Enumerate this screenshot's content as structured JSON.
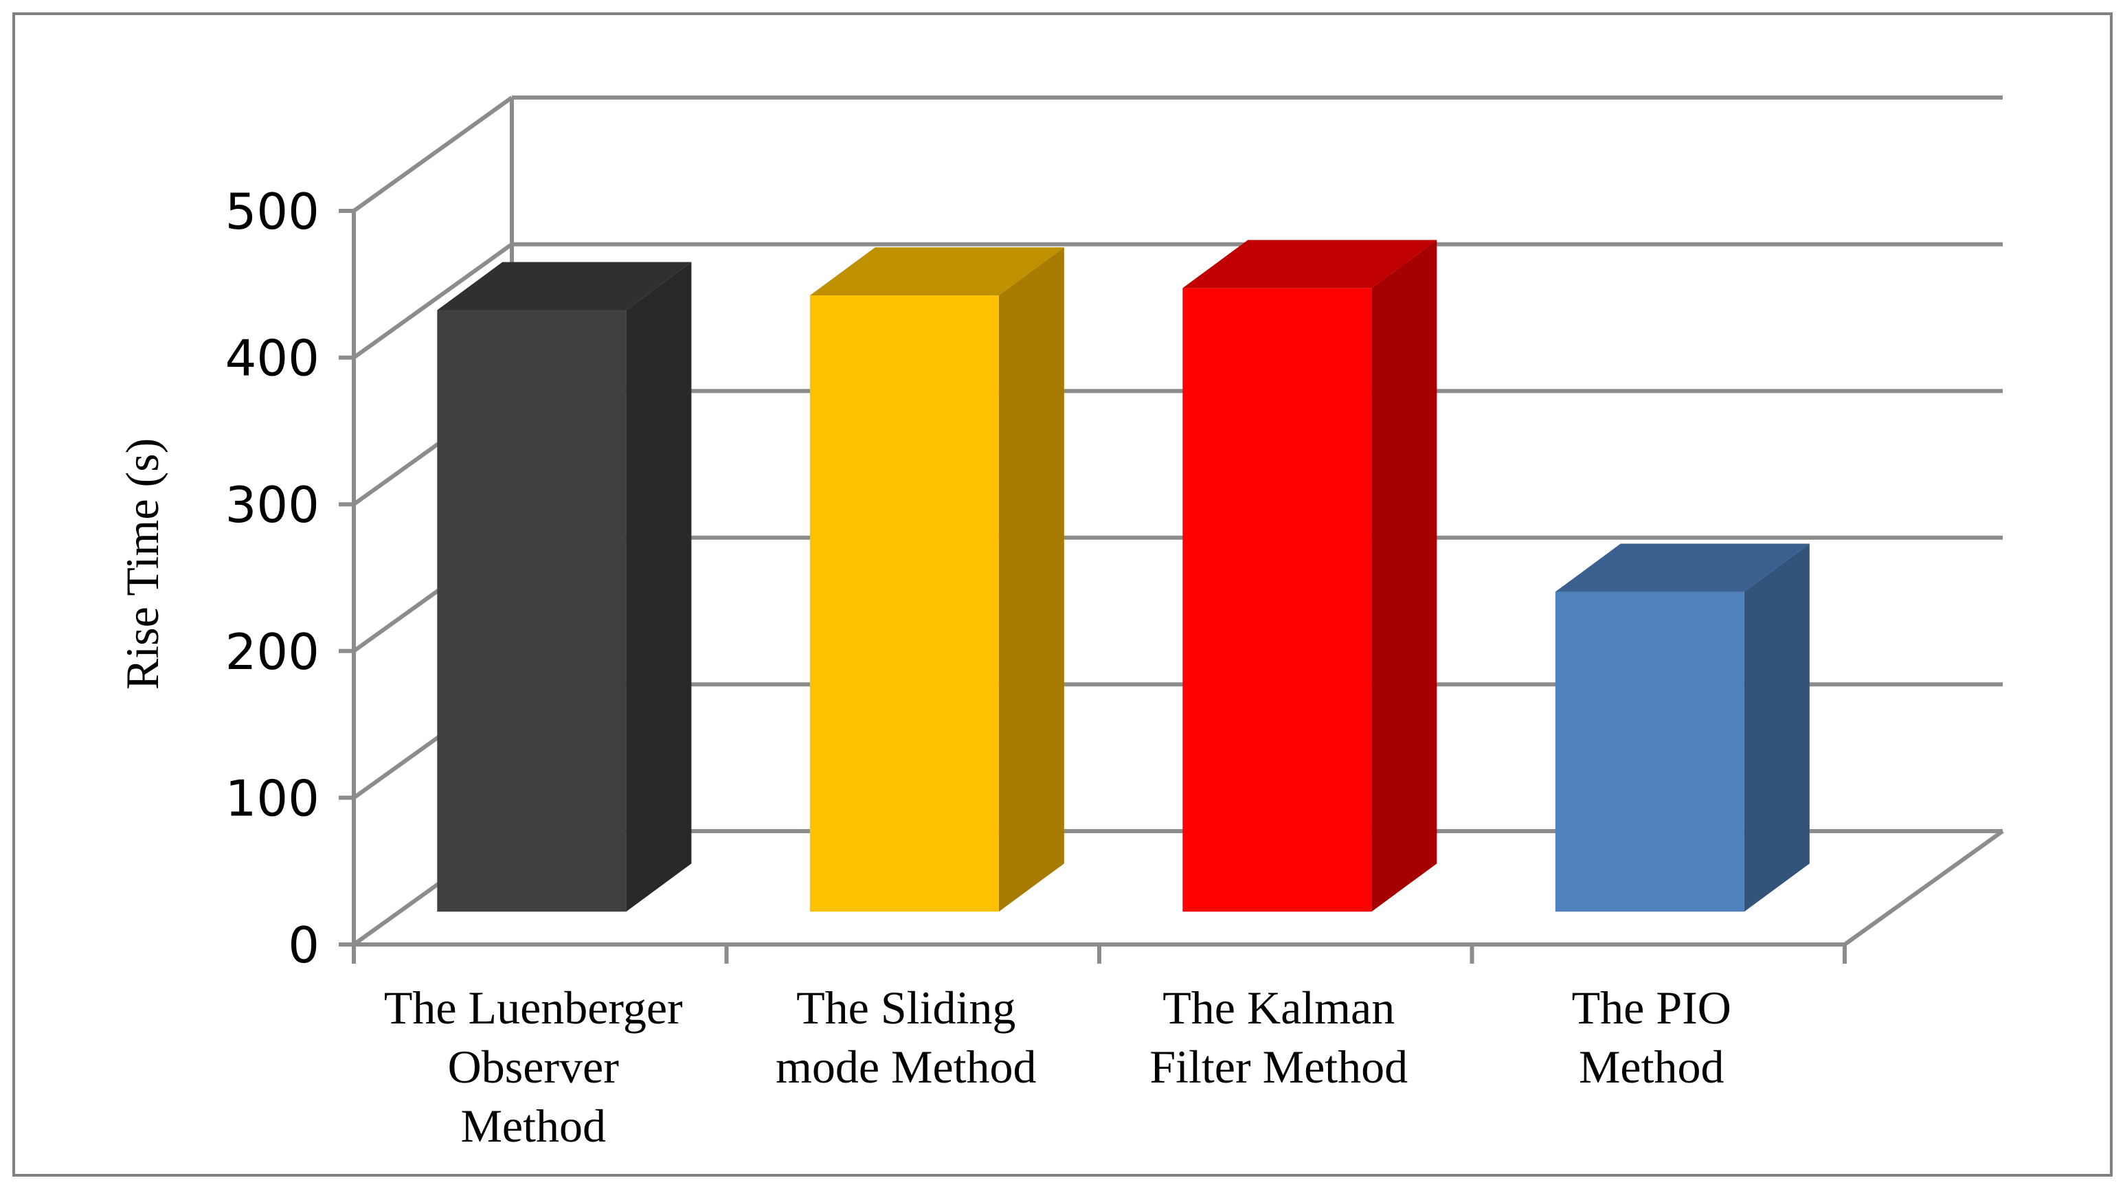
{
  "chart_data": {
    "type": "bar",
    "style": "3d-column",
    "ylabel": "Rise Time (s)",
    "xlabel": "",
    "ylim": [
      0,
      500
    ],
    "yticks": [
      "0",
      "100",
      "200",
      "300",
      "400",
      "500"
    ],
    "grid": true,
    "legend": "none",
    "categories": [
      [
        "The Luenberger",
        "Observer",
        "Method"
      ],
      [
        "The Sliding",
        "mode Method"
      ],
      [
        "The Kalman",
        "Filter Method"
      ],
      [
        "The PIO",
        "Method"
      ]
    ],
    "values": [
      410,
      420,
      425,
      218
    ],
    "colors": {
      "bars": [
        {
          "front": "#404040",
          "side": "#282828",
          "top": "#303030"
        },
        {
          "front": "#FFC000",
          "side": "#A67B00",
          "top": "#BF9000"
        },
        {
          "front": "#FF0000",
          "side": "#A60000",
          "top": "#C00000"
        },
        {
          "front": "#4F81BD",
          "side": "#32537A",
          "top": "#3A6090"
        }
      ],
      "gridline": "#8C8C8C",
      "frame": "#808080"
    }
  }
}
